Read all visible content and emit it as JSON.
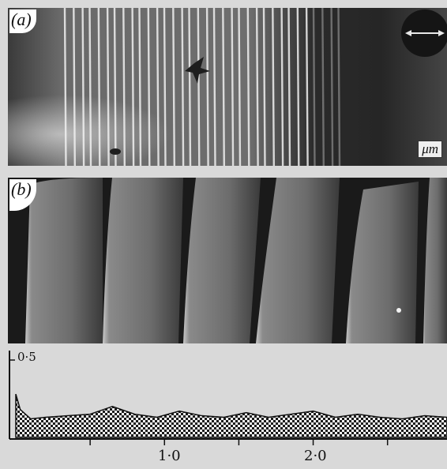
{
  "panel_a": {
    "label": "(a)",
    "scale_unit": "μm"
  },
  "panel_b": {
    "label": "(b)"
  },
  "panel_c": {
    "y_tick": "0·5",
    "x_ticks": [
      "1·0",
      "2·0"
    ]
  },
  "chart_data": {
    "type": "area",
    "title": "",
    "xlabel": "",
    "ylabel": "",
    "y_tick_labels": [
      "0·5"
    ],
    "x_tick_labels": [
      "1·0",
      "2·0"
    ],
    "x": [
      0.0,
      0.03,
      0.1,
      0.2,
      0.35,
      0.5,
      0.65,
      0.8,
      0.95,
      1.1,
      1.25,
      1.4,
      1.55,
      1.7,
      1.85,
      2.0,
      2.15,
      2.3,
      2.45,
      2.6,
      2.75,
      2.9
    ],
    "series": [
      {
        "values": [
          0.28,
          0.18,
          0.12,
          0.13,
          0.14,
          0.15,
          0.2,
          0.15,
          0.13,
          0.17,
          0.14,
          0.13,
          0.16,
          0.13,
          0.15,
          0.17,
          0.13,
          0.15,
          0.13,
          0.12,
          0.14,
          0.13
        ]
      }
    ],
    "grid": false
  }
}
